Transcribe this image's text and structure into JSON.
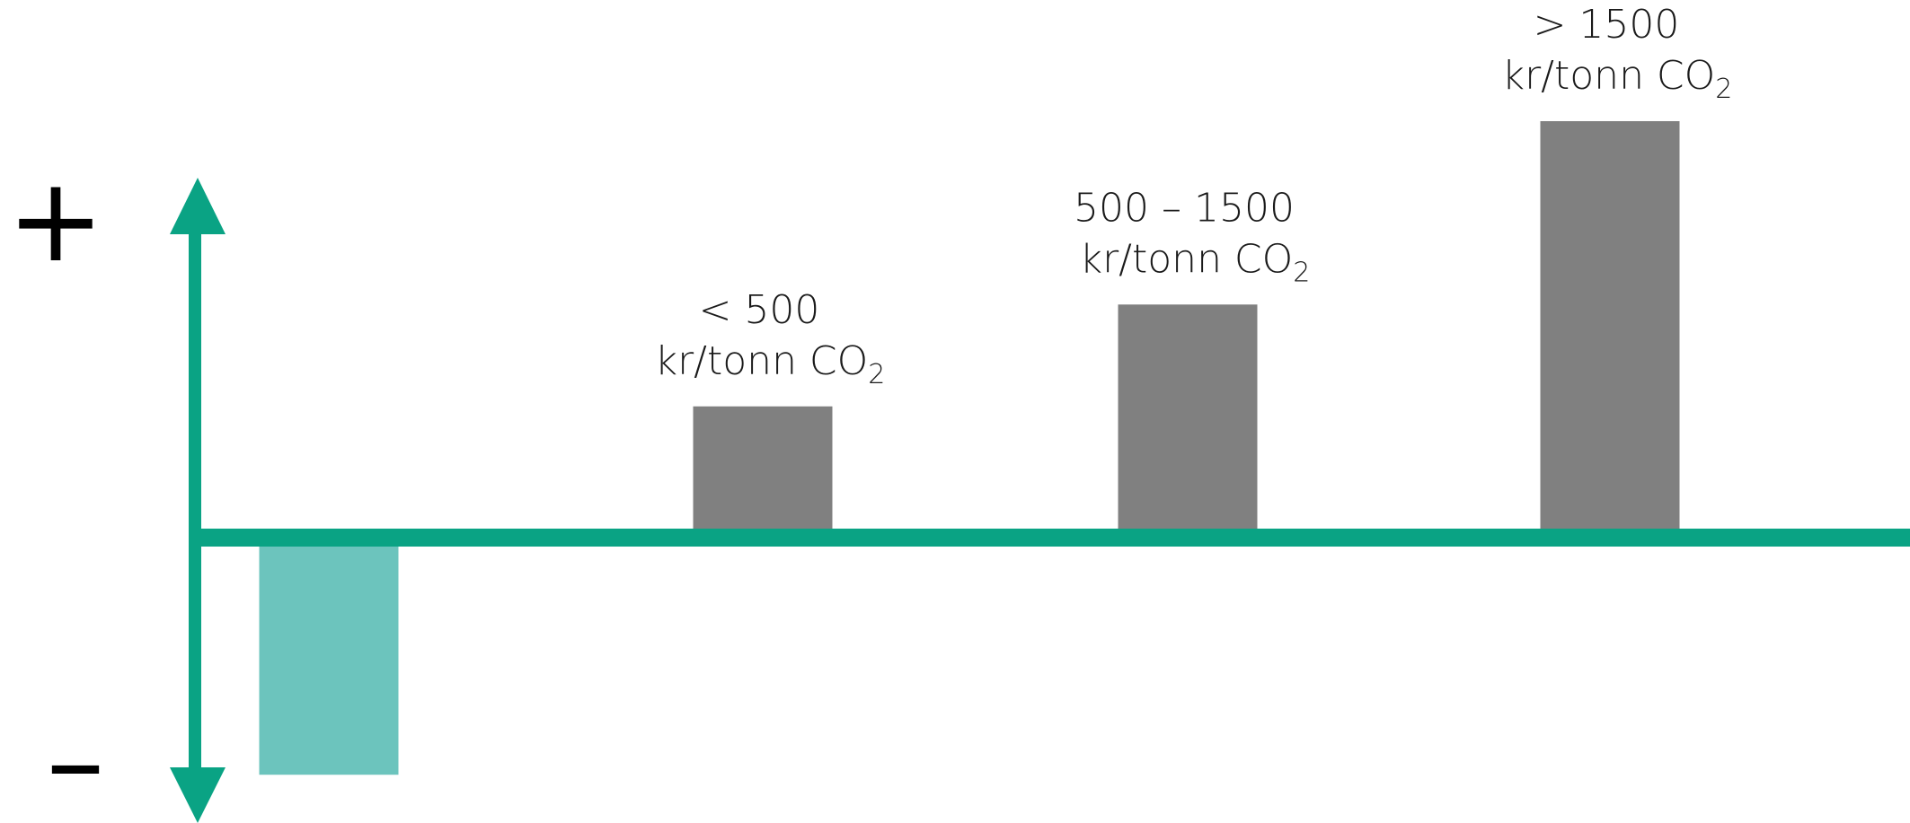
{
  "axis": {
    "positive_sign": "+",
    "negative_sign": "–"
  },
  "colors": {
    "axis": "#0aa384",
    "positive_bar": "#808080",
    "negative_bar": "#6cc4bd",
    "text": "#1a1a1a"
  },
  "chart_data": {
    "type": "bar",
    "title": "",
    "xlabel": "",
    "ylabel": "",
    "grid": false,
    "legend": "none",
    "y_axis_ticks_shown": false,
    "categories": [
      {
        "line1": "",
        "line2": "",
        "subscript": ""
      },
      {
        "line1": "< 500",
        "line2": "kr/tonn CO",
        "subscript": "2"
      },
      {
        "line1": "500 – 1500",
        "line2": "kr/tonn CO",
        "subscript": "2"
      },
      {
        "line1": "> 1500",
        "line2": "kr/tonn CO",
        "subscript": "2"
      }
    ],
    "values": [
      -0.56,
      0.3,
      0.55,
      1.0
    ],
    "ylim": [
      -0.7,
      1.1
    ]
  }
}
